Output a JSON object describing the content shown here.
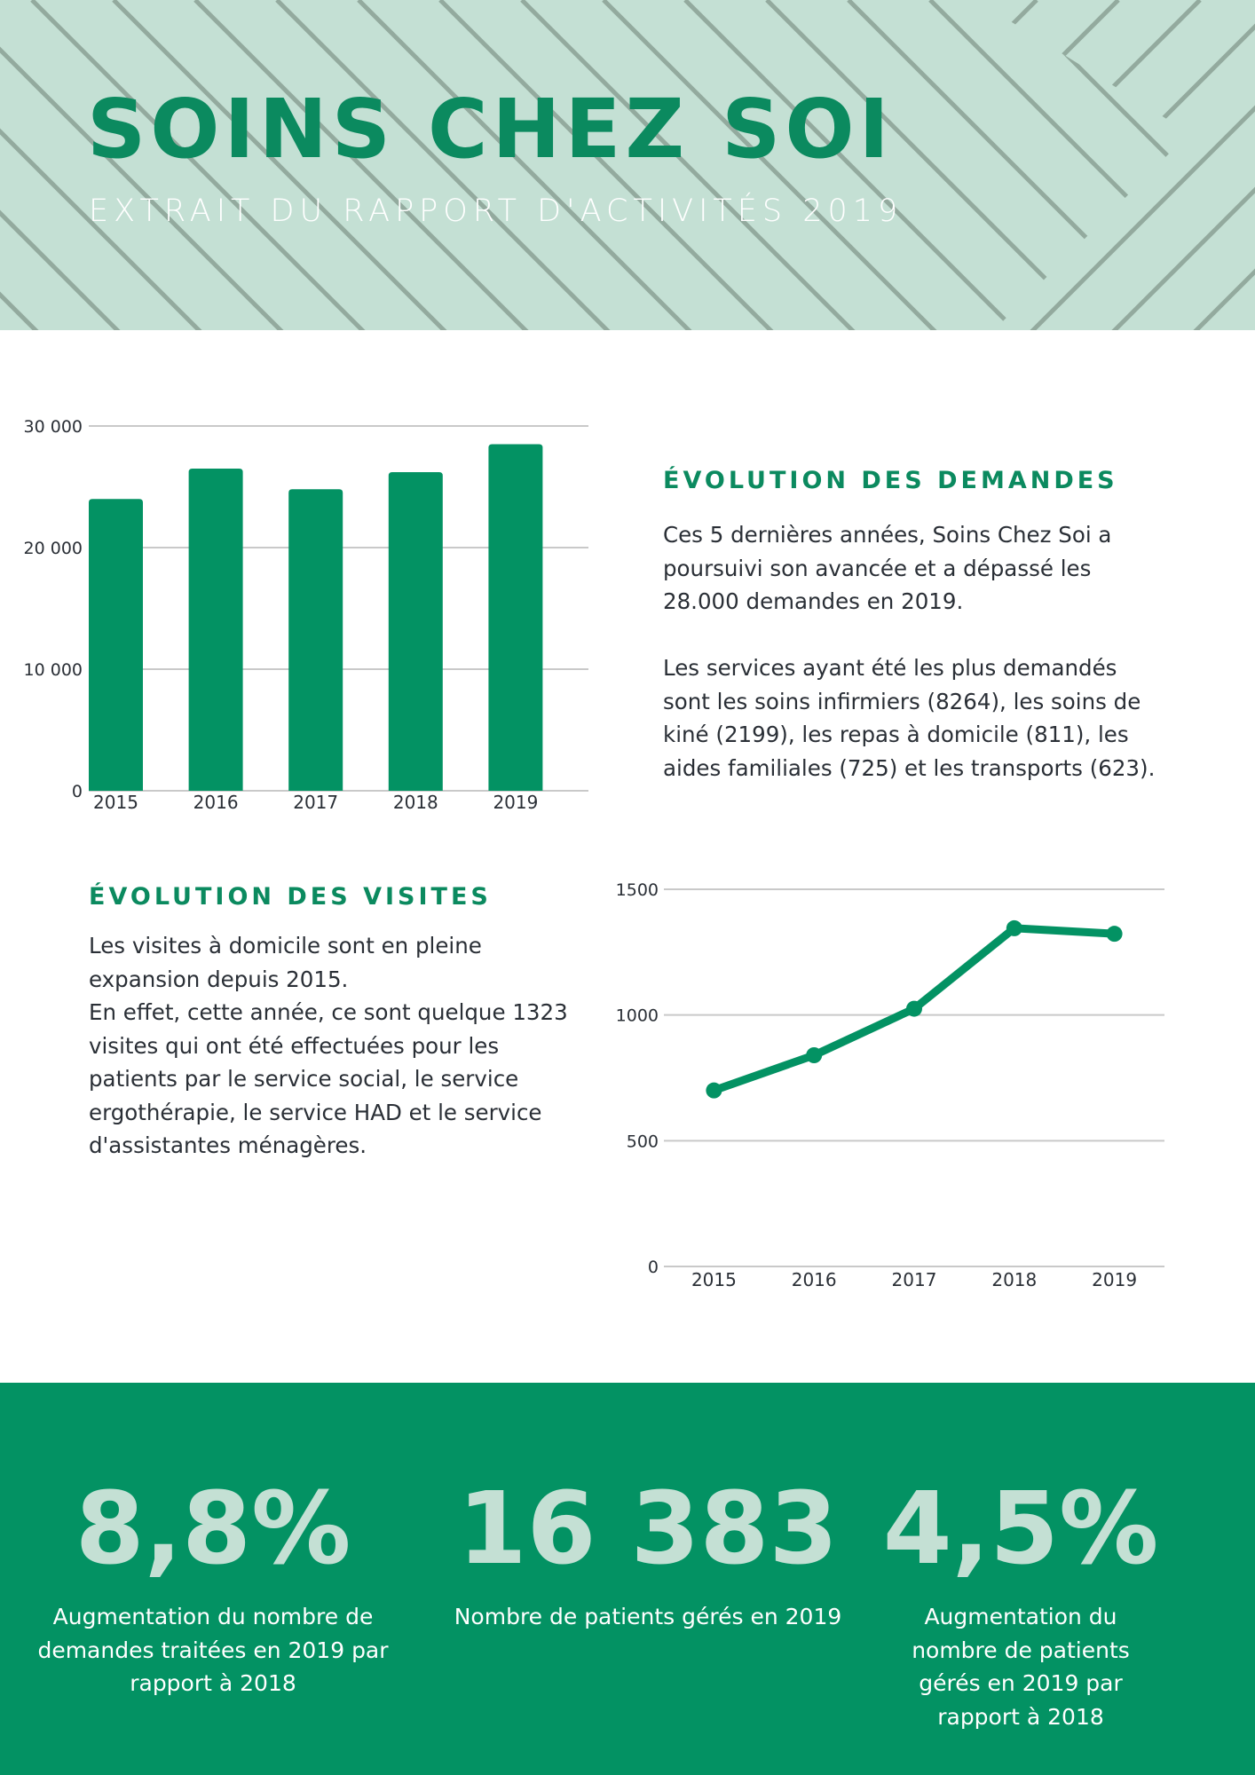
{
  "header": {
    "title": "SOINS CHEZ SOI",
    "subtitle": "EXTRAIT DU RAPPORT D'ACTIVITÉS 2019"
  },
  "demandes": {
    "heading": "ÉVOLUTION DES DEMANDES",
    "para1": "Ces 5 dernières années, Soins Chez Soi a poursuivi son avancée et a dépassé les 28.000 demandes en 2019.",
    "para2": "Les services ayant été les plus demandés sont les soins infirmiers (8264), les soins de kiné (2199), les repas à domicile (811), les aides familiales (725) et les transports (623)."
  },
  "visites": {
    "heading": "ÉVOLUTION DES VISITES",
    "para1": "Les visites à domicile sont en pleine expansion depuis 2015.",
    "para2": "En effet, cette année, ce sont quelque 1323 visites qui ont été effectuées pour les patients par le service social, le service ergothérapie, le service HAD et le service d'assistantes ménagères."
  },
  "stats": [
    {
      "value": "8,8%",
      "description": "Augmentation du nombre de demandes traitées en 2019 par rapport à 2018"
    },
    {
      "value": "16 383",
      "description": "Nombre de patients gérés en 2019"
    },
    {
      "value": "4,5%",
      "description": "Augmentation du nombre de patients gérés  en 2019 par rapport à 2018"
    }
  ],
  "colors": {
    "accent": "#0b8a5f",
    "bar": "#039263",
    "band": "#039263",
    "header_bg": "#c4e0d4",
    "stripe": "#93aa9e",
    "grid": "#c9c9c9"
  },
  "chart_data": [
    {
      "type": "bar",
      "categories": [
        "2015",
        "2016",
        "2017",
        "2018",
        "2019"
      ],
      "values": [
        24000,
        26500,
        24800,
        26200,
        28500
      ],
      "yticks": [
        0,
        10000,
        20000,
        30000
      ],
      "ytick_labels": [
        "0",
        "10 000",
        "20 000",
        "30 000"
      ],
      "ylim": [
        0,
        30000
      ],
      "grid": true
    },
    {
      "type": "line",
      "categories": [
        "2015",
        "2016",
        "2017",
        "2018",
        "2019"
      ],
      "values": [
        700,
        840,
        1025,
        1345,
        1323
      ],
      "yticks": [
        0,
        500,
        1000,
        1500
      ],
      "ytick_labels": [
        "0",
        "500",
        "1000",
        "1500"
      ],
      "ylim": [
        0,
        1500
      ],
      "grid": true
    }
  ]
}
